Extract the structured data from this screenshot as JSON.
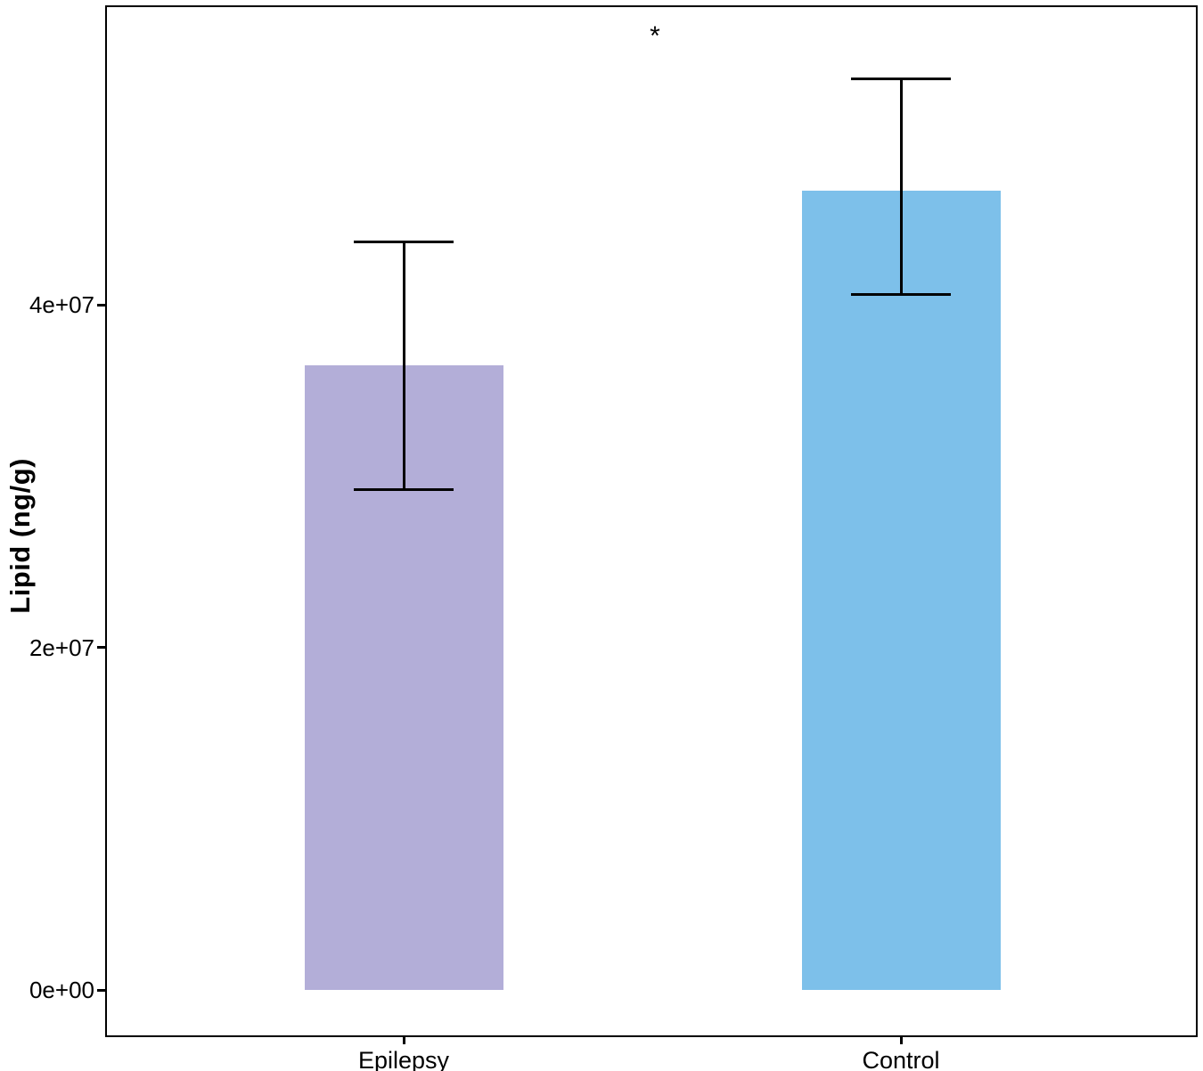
{
  "chart_data": {
    "type": "bar",
    "title": "",
    "xlabel": "",
    "ylabel": "Lipid (ng/g)",
    "categories": [
      "Epilepsy",
      "Control"
    ],
    "values": [
      36500000,
      46700000
    ],
    "error_bars": {
      "low": [
        29200000,
        40600000
      ],
      "high": [
        43700000,
        53200000
      ]
    },
    "bar_colors": [
      "#b3aed8",
      "#7dc0ea"
    ],
    "y_ticks": [
      0,
      20000000,
      40000000
    ],
    "y_tick_labels": [
      "0e+00",
      "2e+07",
      "4e+07"
    ],
    "ylim": [
      0,
      57500000
    ],
    "significance_label": "*",
    "legend_position": "none",
    "grid": false,
    "panel_border": true
  }
}
